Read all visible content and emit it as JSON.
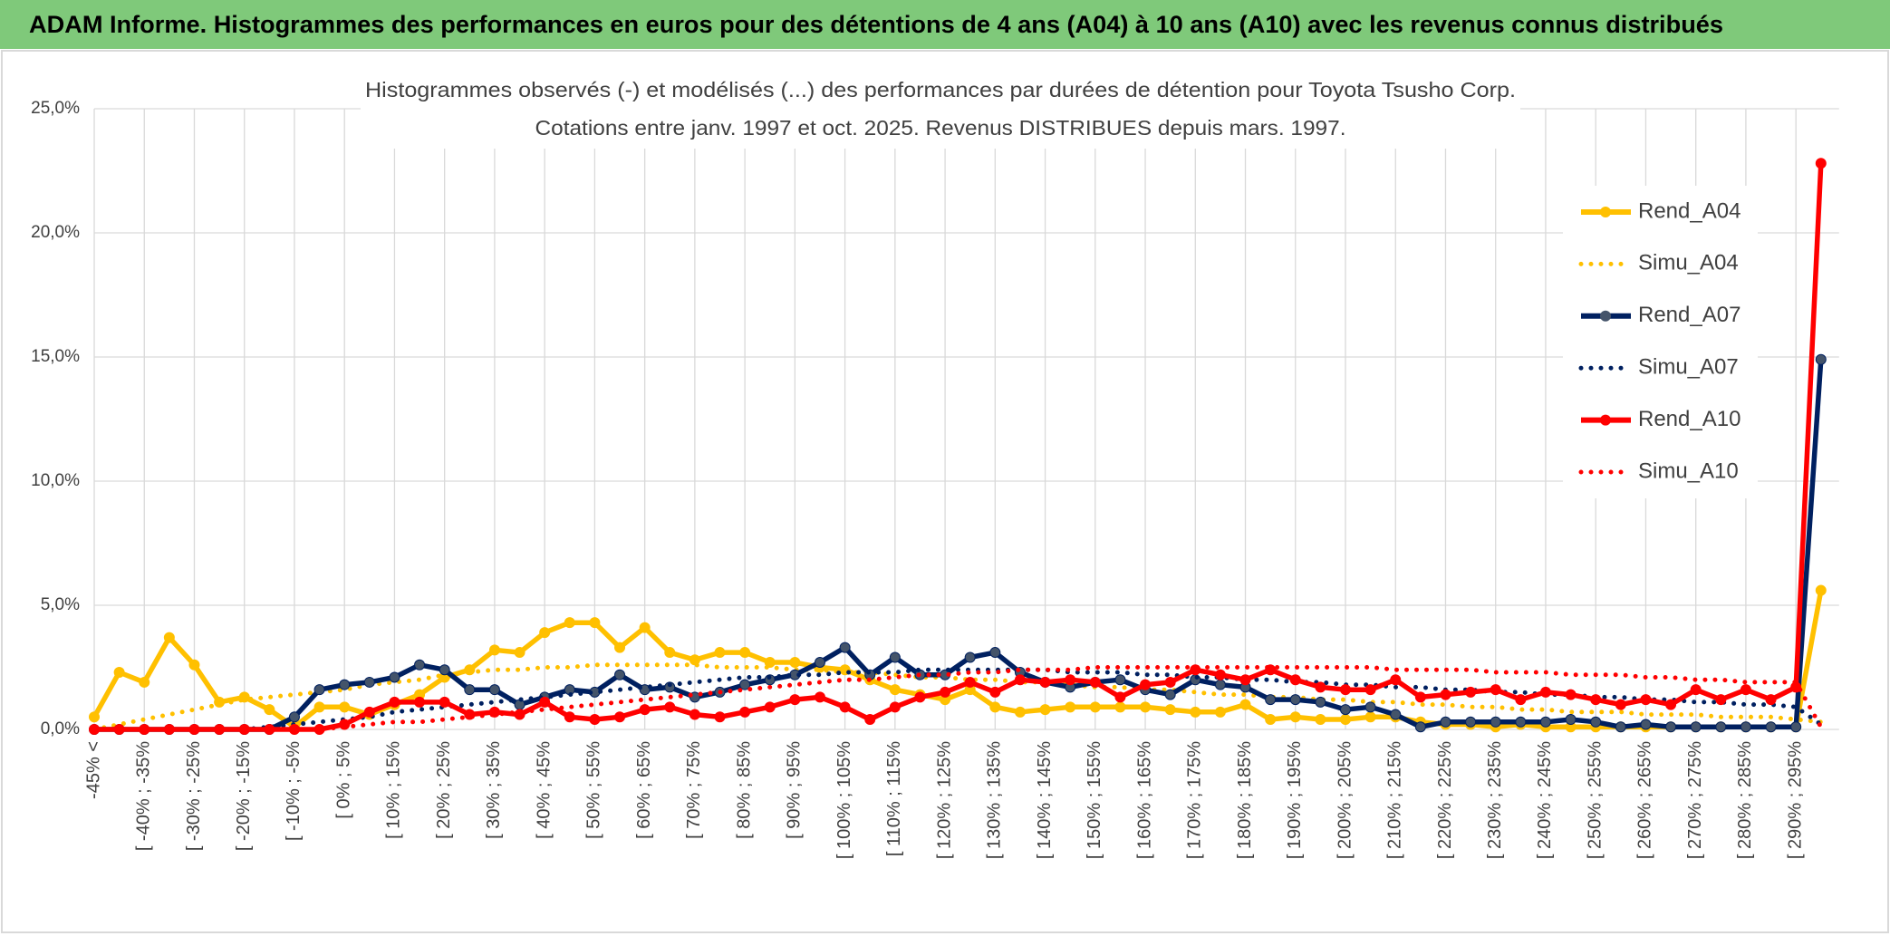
{
  "chart_data": {
    "type": "line",
    "header": "ADAM Informe. Histogrammes des performances en euros pour des détentions de 4 ans (A04) à 10 ans (A10) avec les revenus connus distribués",
    "title": "Histogrammes observés (-) et modélisés (...) des performances par durées de détention pour Toyota Tsusho Corp.",
    "subtitle": "Cotations entre janv. 1997 et oct. 2025. Revenus DISTRIBUES depuis mars. 1997.",
    "categories": [
      "-45% <",
      null,
      "[ -40% ; -35%",
      null,
      "[ -30% ; -25%",
      null,
      "[ -20% ; -15%",
      null,
      "[ -10% ; -5%",
      null,
      "[ 0% ; 5%",
      null,
      "[ 10% ; 15%",
      null,
      "[ 20% ; 25%",
      null,
      "[ 30% ; 35%",
      null,
      "[ 40% ; 45%",
      null,
      "[ 50% ; 55%",
      null,
      "[ 60% ; 65%",
      null,
      "[ 70% ; 75%",
      null,
      "[ 80% ; 85%",
      null,
      "[ 90% ; 95%",
      null,
      "[ 100% ; 105%",
      null,
      "[ 110% ; 115%",
      null,
      "[ 120% ; 125%",
      null,
      "[ 130% ; 135%",
      null,
      "[ 140% ; 145%",
      null,
      "[ 150% ; 155%",
      null,
      "[ 160% ; 165%",
      null,
      "[ 170% ; 175%",
      null,
      "[ 180% ; 185%",
      null,
      "[ 190% ; 195%",
      null,
      "[ 200% ; 205%",
      null,
      "[ 210% ; 215%",
      null,
      "[ 220% ; 225%",
      null,
      "[ 230% ; 235%",
      null,
      "[ 240% ; 245%",
      null,
      "[ 250% ; 255%",
      null,
      "[ 260% ; 265%",
      null,
      "[ 270% ; 275%",
      null,
      "[ 280% ; 285%",
      null,
      "[ 290% ; 295%",
      null
    ],
    "series": [
      {
        "name": "Rend_A04",
        "color": "#ffc000",
        "dash": "solid",
        "marker_color": "#ffc000",
        "values": [
          0.5,
          2.3,
          1.9,
          3.7,
          2.6,
          1.1,
          1.3,
          0.8,
          0.1,
          0.9,
          0.9,
          0.6,
          1.0,
          1.4,
          2.1,
          2.4,
          3.2,
          3.1,
          3.9,
          4.3,
          4.3,
          3.3,
          4.1,
          3.1,
          2.8,
          3.1,
          3.1,
          2.7,
          2.7,
          2.5,
          2.4,
          2.0,
          1.6,
          1.4,
          1.2,
          1.6,
          0.9,
          0.7,
          0.8,
          0.9,
          0.9,
          0.9,
          0.9,
          0.8,
          0.7,
          0.7,
          1.0,
          0.4,
          0.5,
          0.4,
          0.4,
          0.5,
          0.5,
          0.3,
          0.2,
          0.2,
          0.1,
          0.2,
          0.1,
          0.1,
          0.1,
          0.1,
          0.1,
          0.1,
          0.1,
          0.1,
          0.1,
          0.1,
          0.1,
          5.6
        ]
      },
      {
        "name": "Simu_A04",
        "color": "#ffc000",
        "dash": "dotted",
        "values": [
          0.0,
          0.2,
          0.4,
          0.6,
          0.8,
          1.0,
          1.2,
          1.3,
          1.4,
          1.5,
          1.6,
          1.8,
          1.9,
          2.0,
          2.2,
          2.3,
          2.4,
          2.4,
          2.5,
          2.5,
          2.6,
          2.6,
          2.6,
          2.6,
          2.6,
          2.5,
          2.5,
          2.5,
          2.4,
          2.4,
          2.3,
          2.3,
          2.2,
          2.1,
          2.1,
          2.0,
          2.0,
          1.9,
          1.9,
          1.8,
          1.7,
          1.7,
          1.6,
          1.6,
          1.5,
          1.4,
          1.4,
          1.3,
          1.3,
          1.2,
          1.2,
          1.1,
          1.1,
          1.0,
          1.0,
          0.9,
          0.9,
          0.8,
          0.8,
          0.7,
          0.7,
          0.7,
          0.6,
          0.6,
          0.6,
          0.5,
          0.5,
          0.5,
          0.4,
          0.3
        ]
      },
      {
        "name": "Rend_A07",
        "color": "#002060",
        "dash": "solid",
        "marker_color": "#44546a",
        "values": [
          0,
          0,
          0,
          0,
          0,
          0,
          0,
          0,
          0.5,
          1.6,
          1.8,
          1.9,
          2.1,
          2.6,
          2.4,
          1.6,
          1.6,
          1.0,
          1.3,
          1.6,
          1.5,
          2.2,
          1.6,
          1.7,
          1.3,
          1.5,
          1.8,
          2.0,
          2.2,
          2.7,
          3.3,
          2.2,
          2.9,
          2.2,
          2.2,
          2.9,
          3.1,
          2.3,
          1.9,
          1.7,
          1.9,
          2.0,
          1.6,
          1.4,
          2.0,
          1.8,
          1.7,
          1.2,
          1.2,
          1.1,
          0.8,
          0.9,
          0.6,
          0.1,
          0.3,
          0.3,
          0.3,
          0.3,
          0.3,
          0.4,
          0.3,
          0.1,
          0.2,
          0.1,
          0.1,
          0.1,
          0.1,
          0.1,
          0.1,
          14.9
        ]
      },
      {
        "name": "Simu_A07",
        "color": "#002060",
        "dash": "dotted",
        "values": [
          0,
          0,
          0,
          0,
          0,
          0,
          0,
          0.1,
          0.2,
          0.3,
          0.4,
          0.5,
          0.7,
          0.8,
          0.9,
          1.0,
          1.1,
          1.2,
          1.3,
          1.4,
          1.5,
          1.6,
          1.7,
          1.8,
          1.9,
          2.0,
          2.1,
          2.1,
          2.2,
          2.2,
          2.3,
          2.3,
          2.3,
          2.4,
          2.4,
          2.4,
          2.4,
          2.4,
          2.4,
          2.3,
          2.3,
          2.3,
          2.2,
          2.2,
          2.1,
          2.1,
          2.0,
          2.0,
          1.9,
          1.9,
          1.8,
          1.8,
          1.7,
          1.7,
          1.6,
          1.6,
          1.5,
          1.5,
          1.4,
          1.4,
          1.3,
          1.3,
          1.2,
          1.2,
          1.1,
          1.1,
          1.0,
          1.0,
          0.9,
          0.2
        ]
      },
      {
        "name": "Rend_A10",
        "color": "#ff0000",
        "dash": "solid",
        "marker_color": "#ff0000",
        "values": [
          0,
          0,
          0,
          0,
          0,
          0,
          0,
          0,
          0,
          0,
          0.2,
          0.7,
          1.1,
          1.1,
          1.1,
          0.6,
          0.7,
          0.6,
          1.1,
          0.5,
          0.4,
          0.5,
          0.8,
          0.9,
          0.6,
          0.5,
          0.7,
          0.9,
          1.2,
          1.3,
          0.9,
          0.4,
          0.9,
          1.3,
          1.5,
          1.9,
          1.5,
          2.0,
          1.9,
          2.0,
          1.9,
          1.3,
          1.8,
          1.9,
          2.4,
          2.2,
          2.0,
          2.4,
          2.0,
          1.7,
          1.6,
          1.6,
          2.0,
          1.3,
          1.4,
          1.5,
          1.6,
          1.2,
          1.5,
          1.4,
          1.2,
          1.0,
          1.2,
          1.0,
          1.6,
          1.2,
          1.6,
          1.2,
          1.7,
          22.8
        ]
      },
      {
        "name": "Simu_A10",
        "color": "#ff0000",
        "dash": "dotted",
        "values": [
          0,
          0,
          0,
          0,
          0,
          0,
          0,
          0,
          0,
          0,
          0.1,
          0.2,
          0.3,
          0.3,
          0.4,
          0.5,
          0.6,
          0.7,
          0.8,
          0.9,
          1.0,
          1.1,
          1.2,
          1.3,
          1.4,
          1.5,
          1.6,
          1.7,
          1.8,
          1.9,
          2.0,
          2.0,
          2.1,
          2.2,
          2.2,
          2.3,
          2.3,
          2.4,
          2.4,
          2.4,
          2.5,
          2.5,
          2.5,
          2.5,
          2.5,
          2.5,
          2.5,
          2.5,
          2.5,
          2.5,
          2.5,
          2.5,
          2.4,
          2.4,
          2.4,
          2.4,
          2.3,
          2.3,
          2.3,
          2.2,
          2.2,
          2.2,
          2.1,
          2.1,
          2.0,
          2.0,
          1.9,
          1.9,
          1.9,
          0.1
        ]
      }
    ],
    "ylim": [
      0,
      25
    ],
    "yticks": [
      {
        "value": 0,
        "label": "0,0%"
      },
      {
        "value": 5,
        "label": "5,0%"
      },
      {
        "value": 10,
        "label": "10,0%"
      },
      {
        "value": 15,
        "label": "15,0%"
      },
      {
        "value": 20,
        "label": "20,0%"
      },
      {
        "value": 25,
        "label": "25,0%"
      }
    ],
    "grid": true,
    "legend": "right"
  }
}
